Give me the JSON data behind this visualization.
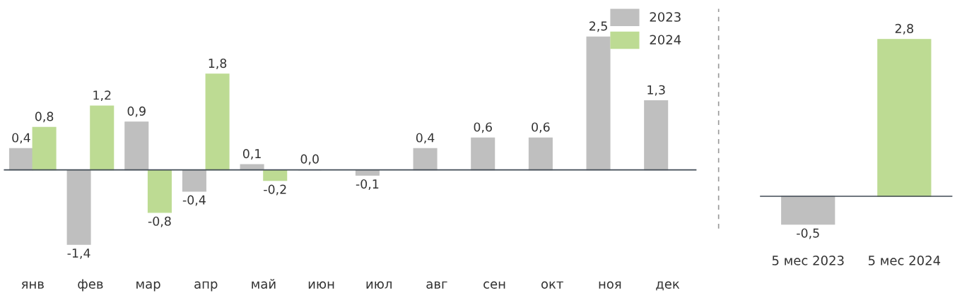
{
  "chart_data": [
    {
      "type": "bar",
      "categories": [
        "янв",
        "фев",
        "мар",
        "апр",
        "май",
        "июн",
        "июл",
        "авг",
        "сен",
        "окт",
        "ноя",
        "дек"
      ],
      "series": [
        {
          "name": "2023",
          "color": "#bfbfbf",
          "values": [
            0.4,
            -1.4,
            0.9,
            -0.4,
            0.1,
            0.0,
            -0.1,
            0.4,
            0.6,
            0.6,
            2.5,
            1.3
          ],
          "value_labels": [
            "0,4",
            "-1,4",
            "0,9",
            "-0,4",
            "0,1",
            "0,0",
            "-0,1",
            "0,4",
            "0,6",
            "0,6",
            "2,5",
            "1,3"
          ]
        },
        {
          "name": "2024",
          "color": "#bddb93",
          "values": [
            0.8,
            1.2,
            -0.8,
            1.8,
            -0.2,
            null,
            null,
            null,
            null,
            null,
            null,
            null
          ],
          "value_labels": [
            "0,8",
            "1,2",
            "-0,8",
            "1,8",
            "-0,2",
            null,
            null,
            null,
            null,
            null,
            null,
            null
          ]
        }
      ],
      "legend": "top right",
      "grid": false
    },
    {
      "type": "bar",
      "categories": [
        "5 мес 2023",
        "5 мес 2024"
      ],
      "values": [
        -0.5,
        2.8
      ],
      "colors": [
        "#bfbfbf",
        "#bddb93"
      ],
      "value_labels": [
        "-0,5",
        "2,8"
      ],
      "grid": false
    }
  ]
}
